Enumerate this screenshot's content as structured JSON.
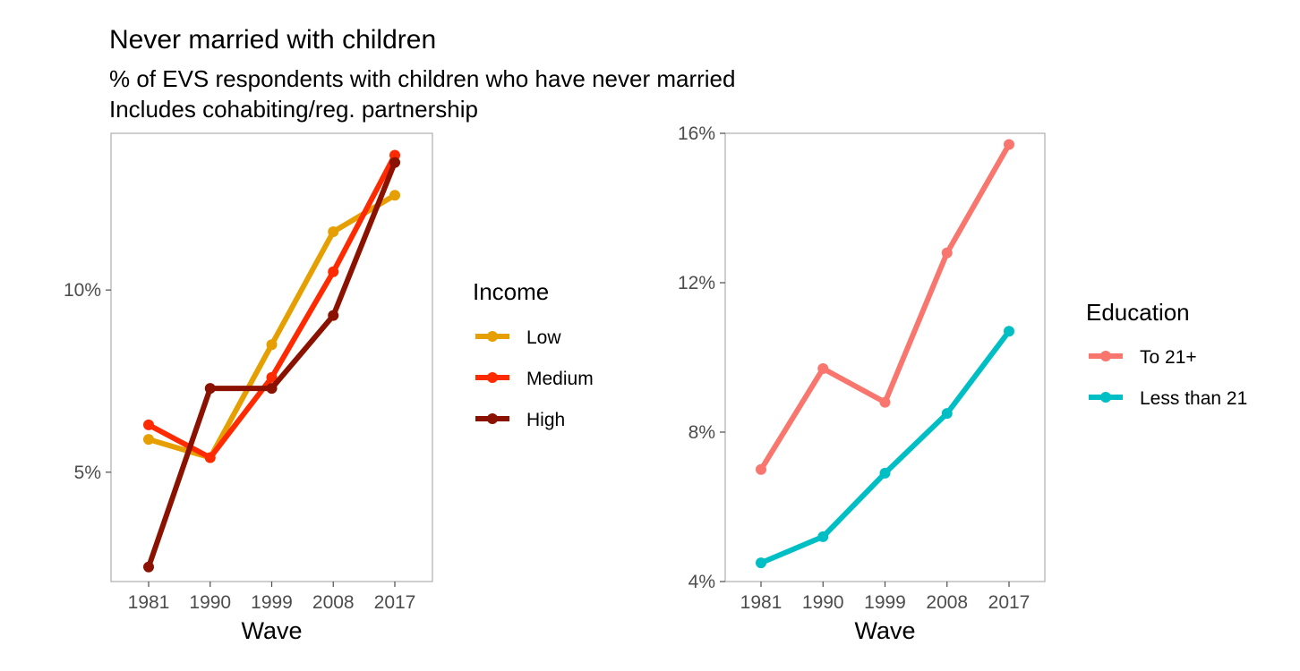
{
  "title": "Never married with children",
  "subtitle_line1": "% of EVS respondents with children who have never married",
  "subtitle_line2": "Includes cohabiting/reg. partnership",
  "chart_data": [
    {
      "type": "line",
      "categories": [
        "1981",
        "1990",
        "1999",
        "2008",
        "2017"
      ],
      "xlabel": "Wave",
      "ylabel": "",
      "y_ticks": [
        5,
        10
      ],
      "y_tick_labels": [
        "5%",
        "10%"
      ],
      "ylim": [
        2.0,
        14.3
      ],
      "grid": false,
      "legend": {
        "title": "Income",
        "position": "right"
      },
      "series": [
        {
          "name": "Low",
          "color": "#E69F00",
          "values": [
            5.9,
            5.4,
            8.5,
            11.6,
            12.6
          ]
        },
        {
          "name": "Medium",
          "color": "#FF2A00",
          "values": [
            6.3,
            5.4,
            7.6,
            10.5,
            13.7
          ]
        },
        {
          "name": "High",
          "color": "#8B1200",
          "values": [
            2.4,
            7.3,
            7.3,
            9.3,
            13.5
          ]
        }
      ]
    },
    {
      "type": "line",
      "categories": [
        "1981",
        "1990",
        "1999",
        "2008",
        "2017"
      ],
      "xlabel": "Wave",
      "ylabel": "",
      "y_ticks": [
        4,
        8,
        12,
        16
      ],
      "y_tick_labels": [
        "4%",
        "8%",
        "12%",
        "16%"
      ],
      "ylim": [
        4.0,
        16.0
      ],
      "grid": false,
      "legend": {
        "title": "Education",
        "position": "right"
      },
      "series": [
        {
          "name": "To 21+",
          "color": "#F8766D",
          "values": [
            7.0,
            9.7,
            8.8,
            12.8,
            15.7
          ]
        },
        {
          "name": "Less than 21",
          "color": "#00BFC4",
          "values": [
            4.5,
            5.2,
            6.9,
            8.5,
            10.7
          ]
        }
      ]
    }
  ]
}
